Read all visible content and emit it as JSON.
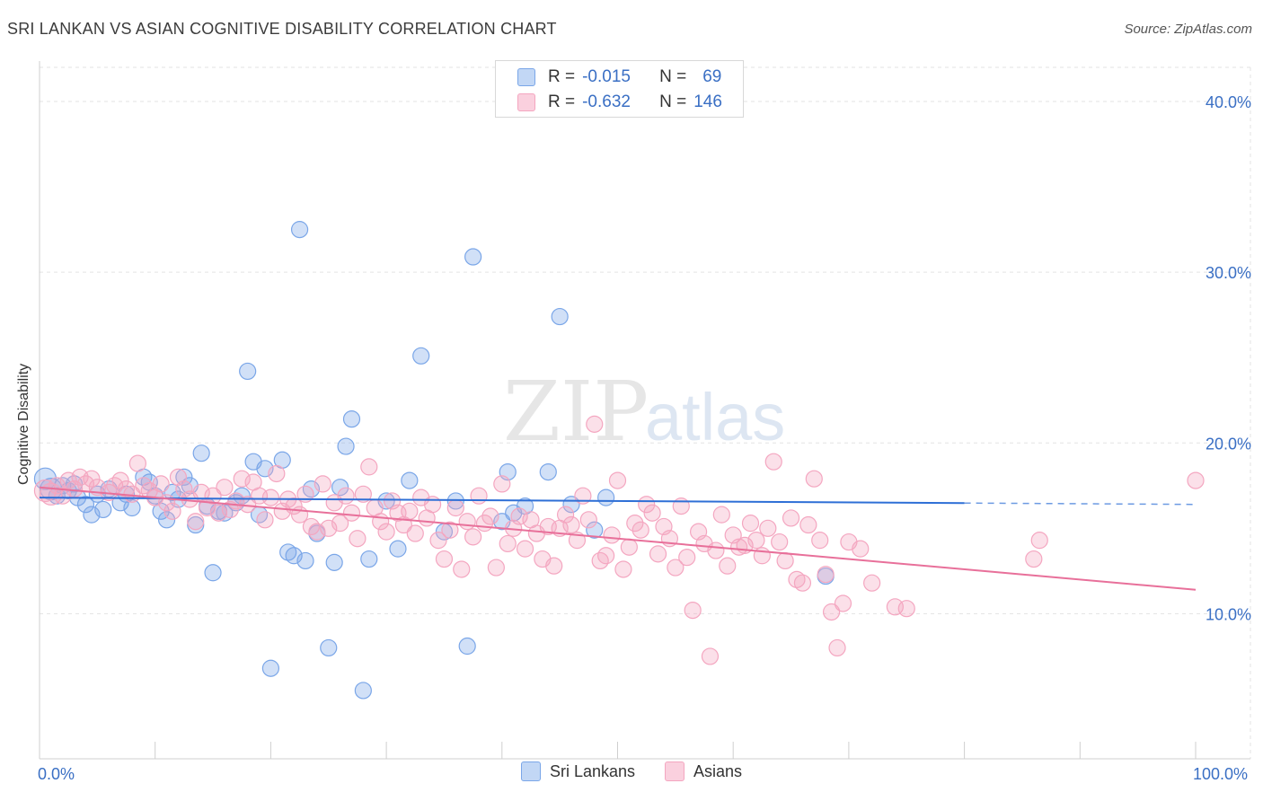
{
  "title": "SRI LANKAN VS ASIAN COGNITIVE DISABILITY CORRELATION CHART",
  "source": "Source: ZipAtlas.com",
  "chart_data": {
    "type": "scatter",
    "ylabel": "Cognitive Disability",
    "xlim": [
      0,
      100
    ],
    "ylim": [
      1.5,
      42
    ],
    "x_tick_labels": [
      "0.0%",
      "100.0%"
    ],
    "y_ticks": [
      10,
      20,
      30,
      40
    ],
    "y_tick_labels": [
      "10.0%",
      "20.0%",
      "30.0%",
      "40.0%"
    ],
    "grid": true,
    "legend_placement": "bottom",
    "series": [
      {
        "name": "Sri Lankans",
        "color": "#7aa6e8",
        "line_color": "#2e6fd6",
        "R": "-0.015",
        "N": "69",
        "trend": {
          "x0": 0,
          "y0": 16.8,
          "x1": 100,
          "y1": 16.4,
          "solid_until": 80
        },
        "points": [
          [
            0.5,
            17.9
          ],
          [
            1,
            17.3
          ],
          [
            1.5,
            16.9
          ],
          [
            2,
            17.5
          ],
          [
            2.5,
            17.2
          ],
          [
            3,
            17.6
          ],
          [
            3.3,
            16.8
          ],
          [
            4,
            16.4
          ],
          [
            4.5,
            15.8
          ],
          [
            5,
            17.0
          ],
          [
            5.5,
            16.1
          ],
          [
            6,
            17.3
          ],
          [
            7,
            16.5
          ],
          [
            7.5,
            17.0
          ],
          [
            8,
            16.2
          ],
          [
            9,
            18.0
          ],
          [
            9.5,
            17.7
          ],
          [
            10,
            16.9
          ],
          [
            10.5,
            16.0
          ],
          [
            11,
            15.5
          ],
          [
            11.5,
            17.1
          ],
          [
            12,
            16.7
          ],
          [
            12.5,
            18.0
          ],
          [
            13,
            17.5
          ],
          [
            13.5,
            15.2
          ],
          [
            14,
            19.4
          ],
          [
            14.5,
            16.3
          ],
          [
            15,
            12.4
          ],
          [
            15.5,
            16.0
          ],
          [
            16,
            15.9
          ],
          [
            17,
            16.5
          ],
          [
            17.5,
            16.9
          ],
          [
            18,
            24.2
          ],
          [
            18.5,
            18.9
          ],
          [
            19,
            15.8
          ],
          [
            19.5,
            18.5
          ],
          [
            20,
            6.8
          ],
          [
            21,
            19.0
          ],
          [
            21.5,
            13.6
          ],
          [
            22,
            13.4
          ],
          [
            22.5,
            32.5
          ],
          [
            23,
            13.1
          ],
          [
            23.5,
            17.3
          ],
          [
            24,
            14.7
          ],
          [
            25,
            8.0
          ],
          [
            25.5,
            13.0
          ],
          [
            26,
            17.4
          ],
          [
            26.5,
            19.8
          ],
          [
            27,
            21.4
          ],
          [
            28,
            5.5
          ],
          [
            28.5,
            13.2
          ],
          [
            30,
            16.6
          ],
          [
            31,
            13.8
          ],
          [
            32,
            17.8
          ],
          [
            33,
            25.1
          ],
          [
            35,
            14.8
          ],
          [
            36,
            16.6
          ],
          [
            37,
            8.1
          ],
          [
            37.5,
            30.9
          ],
          [
            40,
            15.4
          ],
          [
            41,
            15.9
          ],
          [
            42,
            16.3
          ],
          [
            40.5,
            18.3
          ],
          [
            45,
            27.4
          ],
          [
            46,
            16.4
          ],
          [
            48,
            14.9
          ],
          [
            49,
            16.8
          ],
          [
            68,
            12.2
          ],
          [
            44,
            18.3
          ]
        ]
      },
      {
        "name": "Asians",
        "color": "#f4a6c0",
        "line_color": "#e8709a",
        "R": "-0.632",
        "N": "146",
        "trend": {
          "x0": 0,
          "y0": 17.4,
          "x1": 100,
          "y1": 11.4
        },
        "points": [
          [
            0.5,
            17.2
          ],
          [
            1,
            17.0
          ],
          [
            1.5,
            17.5
          ],
          [
            2,
            16.9
          ],
          [
            2.5,
            17.8
          ],
          [
            3,
            17.3
          ],
          [
            3.5,
            18.0
          ],
          [
            4,
            17.6
          ],
          [
            4.5,
            17.9
          ],
          [
            5,
            17.4
          ],
          [
            6,
            17.1
          ],
          [
            6.5,
            17.5
          ],
          [
            7,
            17.8
          ],
          [
            7.5,
            17.3
          ],
          [
            8,
            17.0
          ],
          [
            8.5,
            18.8
          ],
          [
            9,
            17.5
          ],
          [
            9.5,
            17.2
          ],
          [
            10,
            16.8
          ],
          [
            10.5,
            17.6
          ],
          [
            11,
            16.5
          ],
          [
            11.5,
            16.0
          ],
          [
            12,
            18.0
          ],
          [
            12.5,
            17.3
          ],
          [
            13,
            16.7
          ],
          [
            13.5,
            15.4
          ],
          [
            14,
            17.1
          ],
          [
            14.5,
            16.2
          ],
          [
            15,
            16.9
          ],
          [
            15.5,
            15.9
          ],
          [
            16,
            17.4
          ],
          [
            16.5,
            16.1
          ],
          [
            17,
            16.6
          ],
          [
            17.5,
            17.9
          ],
          [
            18,
            16.4
          ],
          [
            18.5,
            17.7
          ],
          [
            19,
            16.9
          ],
          [
            19.5,
            15.5
          ],
          [
            20,
            16.8
          ],
          [
            20.5,
            18.2
          ],
          [
            21,
            16.0
          ],
          [
            21.5,
            16.7
          ],
          [
            22,
            16.3
          ],
          [
            22.5,
            15.8
          ],
          [
            23,
            17.0
          ],
          [
            23.5,
            15.1
          ],
          [
            24,
            14.8
          ],
          [
            24.5,
            17.6
          ],
          [
            25,
            15.0
          ],
          [
            25.5,
            16.5
          ],
          [
            26,
            15.3
          ],
          [
            26.5,
            16.9
          ],
          [
            27,
            15.9
          ],
          [
            27.5,
            14.4
          ],
          [
            28,
            17.0
          ],
          [
            28.5,
            18.6
          ],
          [
            29,
            16.2
          ],
          [
            29.5,
            15.4
          ],
          [
            30,
            14.8
          ],
          [
            30.5,
            16.6
          ],
          [
            31,
            15.9
          ],
          [
            31.5,
            15.2
          ],
          [
            32,
            16.0
          ],
          [
            32.5,
            14.7
          ],
          [
            33,
            16.8
          ],
          [
            33.5,
            15.6
          ],
          [
            34,
            16.4
          ],
          [
            34.5,
            14.3
          ],
          [
            35,
            13.2
          ],
          [
            35.5,
            14.9
          ],
          [
            36,
            16.2
          ],
          [
            36.5,
            12.6
          ],
          [
            37,
            15.4
          ],
          [
            37.5,
            14.5
          ],
          [
            38,
            16.9
          ],
          [
            38.5,
            15.3
          ],
          [
            39,
            15.7
          ],
          [
            39.5,
            12.7
          ],
          [
            40,
            17.6
          ],
          [
            40.5,
            14.1
          ],
          [
            41,
            15.0
          ],
          [
            41.5,
            15.7
          ],
          [
            42,
            13.8
          ],
          [
            42.5,
            15.5
          ],
          [
            43,
            14.7
          ],
          [
            43.5,
            13.2
          ],
          [
            44,
            15.1
          ],
          [
            44.5,
            12.8
          ],
          [
            45,
            15.0
          ],
          [
            45.5,
            15.8
          ],
          [
            46,
            15.2
          ],
          [
            46.5,
            14.3
          ],
          [
            47,
            16.9
          ],
          [
            47.5,
            15.5
          ],
          [
            48,
            21.1
          ],
          [
            48.5,
            13.1
          ],
          [
            49,
            13.4
          ],
          [
            49.5,
            14.6
          ],
          [
            50,
            17.8
          ],
          [
            50.5,
            12.6
          ],
          [
            51,
            13.9
          ],
          [
            51.5,
            15.3
          ],
          [
            52,
            14.9
          ],
          [
            52.5,
            16.4
          ],
          [
            53,
            15.9
          ],
          [
            53.5,
            13.5
          ],
          [
            54,
            15.1
          ],
          [
            54.5,
            14.4
          ],
          [
            55,
            12.7
          ],
          [
            55.5,
            16.3
          ],
          [
            56,
            13.3
          ],
          [
            56.5,
            10.2
          ],
          [
            57,
            14.8
          ],
          [
            57.5,
            14.1
          ],
          [
            58,
            7.5
          ],
          [
            58.5,
            13.7
          ],
          [
            59,
            15.8
          ],
          [
            59.5,
            12.8
          ],
          [
            60,
            14.6
          ],
          [
            60.5,
            13.9
          ],
          [
            61,
            14.0
          ],
          [
            61.5,
            15.3
          ],
          [
            62,
            14.3
          ],
          [
            62.5,
            13.4
          ],
          [
            63,
            15.0
          ],
          [
            63.5,
            18.9
          ],
          [
            64,
            14.2
          ],
          [
            64.5,
            13.1
          ],
          [
            65,
            15.6
          ],
          [
            65.5,
            12.0
          ],
          [
            66,
            11.8
          ],
          [
            66.5,
            15.2
          ],
          [
            67,
            17.9
          ],
          [
            67.5,
            14.3
          ],
          [
            68,
            12.3
          ],
          [
            68.5,
            10.1
          ],
          [
            69,
            8.0
          ],
          [
            69.5,
            10.6
          ],
          [
            70,
            14.2
          ],
          [
            71,
            13.8
          ],
          [
            72,
            11.8
          ],
          [
            74,
            10.4
          ],
          [
            75,
            10.3
          ],
          [
            86,
            13.2
          ],
          [
            86.5,
            14.3
          ],
          [
            100,
            17.8
          ]
        ]
      }
    ]
  },
  "legend": {
    "r_label": "R =",
    "n_label": "N ="
  }
}
